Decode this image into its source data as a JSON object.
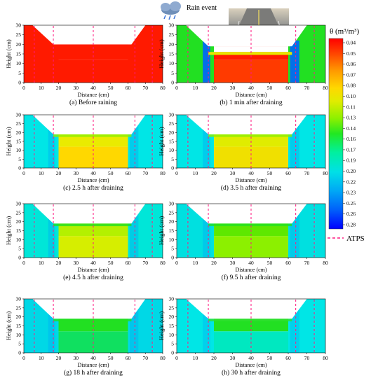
{
  "header": {
    "rain_event_label": "Rain event",
    "cloud_icon": "rain-cloud-icon",
    "photo_icon": "road-photo-icon"
  },
  "axes": {
    "ylabel": "Height (cm)",
    "xlabel": "Distance (cm)",
    "x_ticks": [
      "0",
      "10",
      "20",
      "30",
      "40",
      "50",
      "60",
      "70",
      "80"
    ],
    "y_ticks": [
      "0",
      "5",
      "10",
      "15",
      "20",
      "25",
      "30"
    ]
  },
  "panels": [
    {
      "caption": "(a) Before raining"
    },
    {
      "caption": "(b) 1 min after draining"
    },
    {
      "caption": "(c) 2.5 h after draining"
    },
    {
      "caption": "(d) 3.5 h after draining"
    },
    {
      "caption": "(e) 4.5 h after draining"
    },
    {
      "caption": "(f) 9.5 h after draining"
    },
    {
      "caption": "(g) 18 h after draining"
    },
    {
      "caption": "(h) 30 h after draining"
    }
  ],
  "colorbar": {
    "title": "θ (m³/m³)",
    "ticks": [
      "0.04",
      "0.05",
      "0.06",
      "0.07",
      "0.08",
      "0.10",
      "0.11",
      "0.13",
      "0.14",
      "0.16",
      "0.17",
      "0.19",
      "0.20",
      "0.22",
      "0.23",
      "0.25",
      "0.26",
      "0.28"
    ],
    "stops": [
      "#ff0000",
      "#ff3a00",
      "#ff7400",
      "#ffad00",
      "#ffd800",
      "#e6ec00",
      "#c4f000",
      "#8cf000",
      "#3cf000",
      "#00f05a",
      "#00f0b0",
      "#00e6e6",
      "#00c8f0",
      "#00a0f5",
      "#0078f8",
      "#0050fa",
      "#0028fc",
      "#0000ff"
    ]
  },
  "legend": {
    "atps_label": "ATPS",
    "atps_color": "#ff1a80"
  },
  "palette": {
    "red": "#ff1a00",
    "orange": "#ff5a00",
    "yellow": "#e6e600",
    "lightgreen": "#8cf000",
    "green": "#22e022",
    "cyan": "#00e6e6",
    "lightblue": "#00b8f0",
    "blue": "#1a6cff"
  }
}
